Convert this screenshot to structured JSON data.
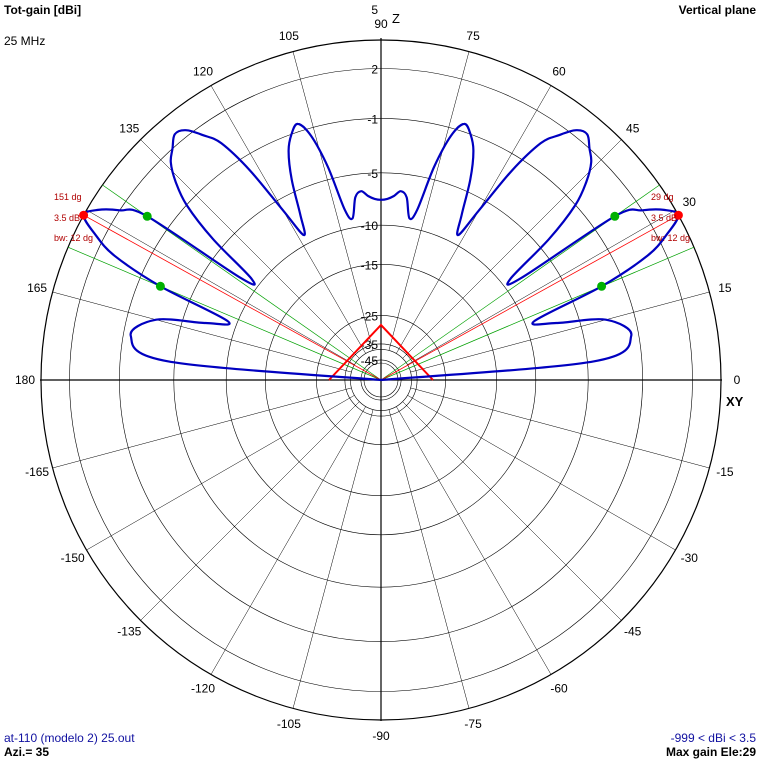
{
  "header": {
    "left_title": "Tot-gain [dBi]",
    "right_title": "Vertical plane",
    "frequency": "25 MHz"
  },
  "footer": {
    "file": "at-110 (modelo 2) 25.out",
    "azimuth": "Azi.= 35",
    "range": "-999 < dBi < 3.5",
    "max_gain": "Max gain Ele:29"
  },
  "colors": {
    "pattern": "#0000c0",
    "grid": "#000000",
    "max_marker": "#ff0000",
    "beam_marker": "#00b000",
    "beam_lines": "#00a000",
    "annotation": "#b00000"
  },
  "chart_data": {
    "type": "polar",
    "angle_labels": [
      {
        "deg": 0,
        "text": "0"
      },
      {
        "deg": 15,
        "text": "15"
      },
      {
        "deg": 30,
        "text": "30"
      },
      {
        "deg": 45,
        "text": "45"
      },
      {
        "deg": 60,
        "text": "60"
      },
      {
        "deg": 75,
        "text": "75"
      },
      {
        "deg": 90,
        "text": "90"
      },
      {
        "deg": 105,
        "text": "105"
      },
      {
        "deg": 120,
        "text": "120"
      },
      {
        "deg": 135,
        "text": "135"
      },
      {
        "deg": 165,
        "text": "165"
      },
      {
        "deg": 180,
        "text": "180"
      },
      {
        "deg": -15,
        "text": "-15"
      },
      {
        "deg": -30,
        "text": "-30"
      },
      {
        "deg": -45,
        "text": "-45"
      },
      {
        "deg": -60,
        "text": "-60"
      },
      {
        "deg": -75,
        "text": "-75"
      },
      {
        "deg": -90,
        "text": "-90"
      },
      {
        "deg": -105,
        "text": "-105"
      },
      {
        "deg": -120,
        "text": "-120"
      },
      {
        "deg": -135,
        "text": "-135"
      },
      {
        "deg": -150,
        "text": "-150"
      },
      {
        "deg": -165,
        "text": "-165"
      }
    ],
    "axis_labels": {
      "vertical": "Z",
      "horizontal": "XY"
    },
    "gain_rings_dbi": [
      5,
      2,
      -1,
      -5,
      -10,
      -15,
      -25,
      -35,
      -45
    ],
    "gain_ring_labels": [
      "5",
      "2",
      "-1",
      "-5",
      "-10",
      "-15",
      "-25",
      "-35",
      "-45"
    ],
    "max_gain_dbi": 3.5,
    "series": [
      {
        "elevation_deg": [
          0,
          5,
          10,
          15,
          18,
          21,
          23,
          25,
          27,
          29,
          31,
          33,
          35,
          36,
          38,
          40,
          42,
          44,
          46,
          48,
          50,
          52,
          54,
          56,
          58,
          60,
          62,
          64,
          66,
          68,
          70,
          72,
          74,
          76,
          78,
          80,
          82,
          84,
          86,
          88,
          90,
          92,
          94,
          96,
          98,
          100,
          102,
          104,
          106,
          108,
          110,
          112,
          114,
          116,
          118,
          120,
          122,
          124,
          126,
          128,
          130,
          132,
          134,
          136,
          138,
          140,
          142,
          144,
          145,
          147,
          149,
          151,
          153,
          155,
          157,
          159,
          162,
          165,
          170,
          175,
          180
        ],
        "gain_dbi": [
          -999,
          -4.5,
          -1.5,
          -3,
          -7,
          -9,
          -2.5,
          1,
          2.5,
          3.5,
          3,
          2,
          0.5,
          -8,
          -9,
          -4,
          -1,
          0.5,
          1.5,
          2,
          2.5,
          2.3,
          1.5,
          0.5,
          -2,
          -6,
          -9,
          -7,
          -4,
          -2,
          -1,
          -0.5,
          -1.5,
          -4,
          -8,
          -9,
          -7,
          -6.5,
          -7,
          -7.3,
          -7.4,
          -7.3,
          -7,
          -6.5,
          -7,
          -9,
          -8,
          -4,
          -1.5,
          -0.5,
          -1,
          -2,
          -4,
          -7,
          -9,
          -6,
          -2,
          0.5,
          1.5,
          2.3,
          2.5,
          2,
          1.5,
          0.5,
          -1,
          -4,
          -9,
          -8,
          0.5,
          2,
          3,
          3.5,
          2.5,
          1,
          -2.5,
          -9,
          -7,
          -3,
          -1.5,
          -4.5,
          -999
        ]
      }
    ],
    "annotations": [
      {
        "side": "right",
        "lines": [
          "29 dg",
          "3.5 dB",
          "bw: 12 dg"
        ]
      },
      {
        "side": "left",
        "lines": [
          "151 dg",
          "3.5 dB",
          "bw: 12 dg"
        ]
      }
    ],
    "main_lobes": [
      {
        "max_deg": 29,
        "beam_low_deg": 23,
        "beam_high_deg": 35
      },
      {
        "max_deg": 151,
        "beam_low_deg": 145,
        "beam_high_deg": 157
      }
    ]
  }
}
